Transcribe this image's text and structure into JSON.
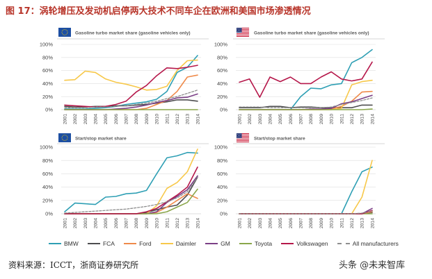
{
  "figure": {
    "title": "图 17：涡轮增压及发动机启停两大技术不同车企在欧洲和美国市场渗透情况",
    "title_color": "#b8352a",
    "source": "资料来源：ICCT，浙商证券研究所",
    "watermark": "头条 @未来智库"
  },
  "legend_position": "bottom",
  "legend": [
    {
      "label": "BMW",
      "color": "#2e9fb4",
      "dashed": false
    },
    {
      "label": "FCA",
      "color": "#4d4d4f",
      "dashed": false
    },
    {
      "label": "Ford",
      "color": "#ef8a4a",
      "dashed": false
    },
    {
      "label": "Daimler",
      "color": "#f7c84a",
      "dashed": false
    },
    {
      "label": "GM",
      "color": "#7b3f86",
      "dashed": false
    },
    {
      "label": "Toyota",
      "color": "#8aa64a",
      "dashed": false
    },
    {
      "label": "Volkswagen",
      "color": "#b5174a",
      "dashed": false
    },
    {
      "label": "All manufacturers",
      "color": "#8e8e8e",
      "dashed": true
    }
  ],
  "chart_data": [
    {
      "type": "line",
      "region_icon": "eu-flag-icon",
      "title": "Gasoline turbo market share (gasoline vehicles only)",
      "x": [
        "2001",
        "2002",
        "2003",
        "2004",
        "2005",
        "2006",
        "2007",
        "2008",
        "2009",
        "2010",
        "2011",
        "2012",
        "2013",
        "2014"
      ],
      "yticks": [
        "0%",
        "20%",
        "40%",
        "60%",
        "80%",
        "100%"
      ],
      "ylim": [
        0,
        100
      ],
      "grid": true,
      "series": [
        {
          "name": "BMW",
          "values": [
            1,
            1,
            1,
            2,
            3,
            5,
            8,
            10,
            12,
            16,
            28,
            57,
            65,
            83
          ]
        },
        {
          "name": "FCA",
          "values": [
            5,
            4,
            4,
            5,
            5,
            6,
            6,
            7,
            8,
            10,
            12,
            15,
            15,
            13
          ]
        },
        {
          "name": "Ford",
          "values": [
            0,
            0,
            0,
            0,
            0,
            0,
            0,
            0,
            2,
            8,
            14,
            28,
            50,
            53
          ]
        },
        {
          "name": "Daimler",
          "values": [
            45,
            46,
            59,
            57,
            47,
            42,
            39,
            35,
            30,
            31,
            36,
            60,
            75,
            76
          ]
        },
        {
          "name": "GM",
          "values": [
            0,
            0,
            0,
            0,
            0,
            1,
            2,
            4,
            7,
            11,
            14,
            18,
            19,
            24
          ]
        },
        {
          "name": "Toyota",
          "values": [
            0,
            0,
            0,
            0,
            0,
            0,
            0,
            0,
            0,
            0,
            0,
            0,
            0,
            0
          ]
        },
        {
          "name": "Volkswagen",
          "values": [
            7,
            6,
            5,
            4,
            5,
            8,
            13,
            27,
            37,
            52,
            64,
            63,
            65,
            68
          ]
        },
        {
          "name": "All manufacturers",
          "values": [
            3,
            3,
            3,
            4,
            4,
            5,
            6,
            8,
            10,
            13,
            17,
            20,
            25,
            30
          ]
        }
      ]
    },
    {
      "type": "line",
      "region_icon": "us-flag-icon",
      "title": "Gasoline turbo market share (gasoline vehicles only)",
      "x": [
        "2001",
        "2002",
        "2003",
        "2004",
        "2005",
        "2006",
        "2007",
        "2008",
        "2009",
        "2010",
        "2011",
        "2012",
        "2013",
        "2014"
      ],
      "yticks": [
        "0%",
        "20%",
        "40%",
        "60%",
        "80%",
        "100%"
      ],
      "ylim": [
        0,
        100
      ],
      "grid": true,
      "series": [
        {
          "name": "BMW",
          "values": [
            0,
            0,
            0,
            0,
            0,
            0,
            20,
            33,
            32,
            38,
            40,
            72,
            80,
            92
          ]
        },
        {
          "name": "FCA",
          "values": [
            3,
            3,
            3,
            5,
            5,
            3,
            4,
            4,
            3,
            3,
            3,
            3,
            7,
            7
          ]
        },
        {
          "name": "Ford",
          "values": [
            0,
            0,
            0,
            0,
            0,
            0,
            0,
            0,
            0,
            1,
            5,
            13,
            27,
            28
          ]
        },
        {
          "name": "Daimler",
          "values": [
            0,
            0,
            0,
            0,
            0,
            0,
            0,
            0,
            0,
            0,
            2,
            38,
            43,
            45
          ]
        },
        {
          "name": "GM",
          "values": [
            0,
            0,
            0,
            0,
            0,
            0,
            0,
            1,
            1,
            2,
            9,
            12,
            17,
            22
          ]
        },
        {
          "name": "Toyota",
          "values": [
            0,
            0,
            0,
            0,
            0,
            0,
            0,
            0,
            0,
            0,
            0,
            0,
            0,
            1
          ]
        },
        {
          "name": "Volkswagen",
          "values": [
            42,
            47,
            19,
            50,
            43,
            50,
            40,
            40,
            50,
            58,
            47,
            44,
            47,
            73
          ]
        },
        {
          "name": "All manufacturers",
          "values": [
            4,
            4,
            4,
            3,
            3,
            3,
            3,
            3,
            3,
            4,
            8,
            11,
            14,
            18
          ]
        }
      ]
    },
    {
      "type": "line",
      "region_icon": "eu-flag-icon",
      "title": "Start/stop market share",
      "x": [
        "2001",
        "2002",
        "2003",
        "2004",
        "2005",
        "2006",
        "2007",
        "2008",
        "2009",
        "2010",
        "2011",
        "2012",
        "2013",
        "2014"
      ],
      "yticks": [
        "0%",
        "20%",
        "40%",
        "60%",
        "80%",
        "100%"
      ],
      "ylim": [
        0,
        100
      ],
      "grid": true,
      "series": [
        {
          "name": "BMW",
          "values": [
            3,
            16,
            15,
            14,
            25,
            26,
            30,
            31,
            35,
            60,
            84,
            87,
            92,
            91
          ]
        },
        {
          "name": "FCA",
          "values": [
            0,
            0,
            0,
            0,
            0,
            0,
            0,
            0,
            2,
            6,
            10,
            13,
            28,
            55
          ]
        },
        {
          "name": "Ford",
          "values": [
            0,
            0,
            0,
            0,
            0,
            0,
            0,
            0,
            0,
            2,
            10,
            20,
            30,
            23
          ]
        },
        {
          "name": "Daimler",
          "values": [
            0,
            0,
            0,
            0,
            0,
            0,
            0,
            0,
            0,
            12,
            38,
            47,
            63,
            97
          ]
        },
        {
          "name": "GM",
          "values": [
            0,
            0,
            0,
            0,
            0,
            0,
            0,
            0,
            0,
            3,
            17,
            26,
            36,
            57
          ]
        },
        {
          "name": "Toyota",
          "values": [
            0,
            0,
            0,
            0,
            0,
            0,
            0,
            0,
            0,
            0,
            3,
            10,
            17,
            37
          ]
        },
        {
          "name": "Volkswagen",
          "values": [
            0,
            0,
            0,
            0,
            0,
            0,
            0,
            0,
            3,
            8,
            18,
            28,
            40,
            70
          ]
        },
        {
          "name": "All manufacturers",
          "values": [
            1,
            2,
            3,
            4,
            5,
            6,
            7,
            9,
            11,
            14,
            18,
            24,
            33,
            55
          ]
        }
      ]
    },
    {
      "type": "line",
      "region_icon": "us-flag-icon",
      "title": "Start/stop market share",
      "x": [
        "2001",
        "2002",
        "2003",
        "2004",
        "2005",
        "2006",
        "2007",
        "2008",
        "2009",
        "2010",
        "2011",
        "2012",
        "2013",
        "2014"
      ],
      "yticks": [
        "0%",
        "20%",
        "40%",
        "60%",
        "80%",
        "100%"
      ],
      "ylim": [
        0,
        100
      ],
      "grid": true,
      "series": [
        {
          "name": "BMW",
          "values": [
            0,
            0,
            0,
            0,
            0,
            0,
            0,
            0,
            0,
            0,
            0,
            33,
            63,
            70
          ]
        },
        {
          "name": "FCA",
          "values": [
            0,
            0,
            0,
            0,
            0,
            0,
            0,
            0,
            0,
            0,
            0,
            0,
            0,
            2
          ]
        },
        {
          "name": "Ford",
          "values": [
            0,
            0,
            0,
            0,
            0,
            0,
            0,
            0,
            0,
            0,
            0,
            0,
            0,
            3
          ]
        },
        {
          "name": "Daimler",
          "values": [
            0,
            0,
            0,
            0,
            0,
            0,
            0,
            0,
            0,
            0,
            0,
            0,
            25,
            80
          ]
        },
        {
          "name": "GM",
          "values": [
            0,
            0,
            0,
            0,
            0,
            0,
            0,
            0,
            0,
            0,
            0,
            0,
            0,
            8
          ]
        },
        {
          "name": "Toyota",
          "values": [
            0,
            0,
            0,
            0,
            0,
            0,
            0,
            0,
            0,
            0,
            0,
            0,
            0,
            0
          ]
        },
        {
          "name": "Volkswagen",
          "values": [
            0,
            0,
            0,
            0,
            0,
            0,
            0,
            0,
            0,
            0,
            0,
            0,
            0,
            5
          ]
        },
        {
          "name": "All manufacturers",
          "values": [
            0,
            0,
            0,
            0,
            0,
            0,
            0,
            0,
            0,
            0,
            0,
            0,
            1,
            4
          ]
        }
      ]
    }
  ]
}
